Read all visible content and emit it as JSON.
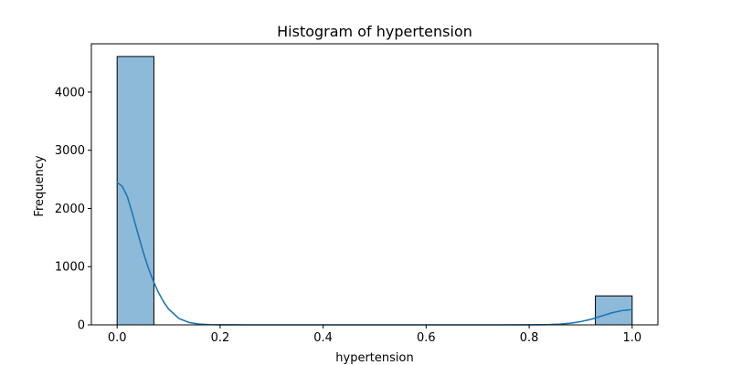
{
  "chart_data": {
    "type": "bar",
    "title": "Histogram of hypertension",
    "xlabel": "hypertension",
    "ylabel": "Frequency",
    "xlim": [
      -0.05,
      1.05
    ],
    "ylim": [
      0,
      4830
    ],
    "x_ticks": [
      0.0,
      0.2,
      0.4,
      0.6,
      0.8,
      1.0
    ],
    "x_tick_labels": [
      "0.0",
      "0.2",
      "0.4",
      "0.6",
      "0.8",
      "1.0"
    ],
    "y_ticks": [
      0,
      1000,
      2000,
      3000,
      4000
    ],
    "y_tick_labels": [
      "0",
      "1000",
      "2000",
      "3000",
      "4000"
    ],
    "bins": [
      {
        "x0": 0.0,
        "x1": 0.0714,
        "count": 4612
      },
      {
        "x0": 0.9286,
        "x1": 1.0,
        "count": 498
      }
    ],
    "kde": {
      "x": [
        0.0,
        0.01,
        0.02,
        0.03,
        0.04,
        0.05,
        0.06,
        0.07,
        0.08,
        0.09,
        0.1,
        0.12,
        0.14,
        0.16,
        0.18,
        0.2,
        0.25,
        0.3,
        0.4,
        0.5,
        0.6,
        0.7,
        0.75,
        0.8,
        0.84,
        0.86,
        0.88,
        0.9,
        0.92,
        0.94,
        0.96,
        0.98,
        1.0
      ],
      "y": [
        2450,
        2380,
        2200,
        1900,
        1580,
        1270,
        990,
        760,
        560,
        400,
        270,
        110,
        40,
        12,
        4,
        1,
        0,
        0,
        0,
        0,
        0,
        0,
        0,
        1,
        5,
        12,
        28,
        55,
        95,
        150,
        205,
        245,
        262
      ]
    },
    "colors": {
      "bar_fill": "#8dbad9",
      "bar_edge": "#000000",
      "kde_line": "#1f77b4"
    },
    "grid": false,
    "legend": "none"
  }
}
